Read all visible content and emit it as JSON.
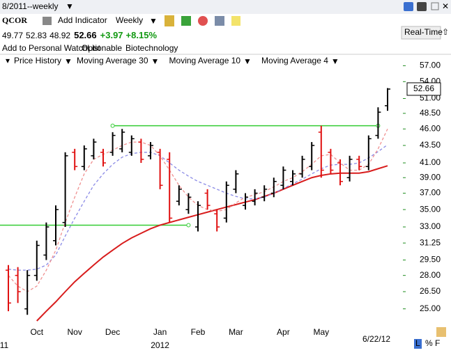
{
  "ui": {
    "window_title": "8/2011--weekly",
    "symbol": "QCOR",
    "add_indicator": "Add Indicator",
    "period": "Weekly",
    "change": {
      "value": 3.97,
      "label": "+3.97"
    },
    "change_pct": {
      "value": 8.15,
      "label": "+8.15%"
    },
    "watchlist": "Add to Personal WatchList",
    "optionable": "Optionable",
    "industry": "Biotechnology",
    "real_time": "Real-Time",
    "last_date": "6/22/12",
    "scale_buttons": [
      "L",
      "%",
      "F"
    ]
  },
  "chart_data": {
    "type": "ohlc",
    "price_name": "Price History",
    "categories": [
      null,
      null,
      null,
      "Oct",
      null,
      null,
      null,
      "Nov",
      null,
      null,
      null,
      "Dec",
      null,
      null,
      null,
      null,
      "Jan",
      null,
      null,
      null,
      "Feb",
      null,
      null,
      null,
      "Mar",
      null,
      null,
      null,
      null,
      "Apr",
      null,
      null,
      null,
      "May",
      null,
      null,
      null,
      null,
      null,
      null,
      null
    ],
    "categories2": [
      "11",
      null,
      null,
      null,
      null,
      null,
      null,
      null,
      null,
      null,
      null,
      null,
      null,
      null,
      null,
      null,
      "2012",
      null,
      null,
      null,
      null,
      null,
      null,
      null,
      null,
      null,
      null,
      null,
      null,
      null,
      null,
      null,
      null,
      null,
      null,
      null,
      null,
      null,
      null,
      null,
      null
    ],
    "open": [
      28.5,
      28.0,
      25.0,
      28.0,
      30.0,
      31.5,
      33.5,
      42.5,
      40.5,
      42.0,
      42.5,
      42.5,
      43.0,
      42.5,
      44.0,
      42.0,
      42.5,
      41.5,
      36.0,
      35.0,
      33.0,
      37.0,
      34.5,
      34.0,
      37.5,
      35.5,
      36.0,
      36.5,
      37.0,
      38.0,
      38.5,
      39.5,
      40.5,
      45.5,
      42.5,
      41.0,
      39.0,
      41.5,
      40.5,
      45.0,
      49.77
    ],
    "high": [
      29.0,
      28.8,
      28.5,
      31.5,
      33.5,
      35.5,
      42.5,
      43.0,
      43.5,
      44.5,
      43.0,
      45.5,
      46.0,
      45.0,
      44.5,
      44.0,
      43.0,
      42.5,
      38.0,
      37.0,
      36.0,
      37.5,
      35.0,
      38.5,
      40.0,
      37.0,
      37.5,
      38.0,
      39.0,
      40.5,
      40.0,
      42.0,
      44.0,
      46.5,
      43.0,
      41.5,
      42.0,
      42.0,
      45.0,
      49.5,
      52.83
    ],
    "low": [
      24.8,
      25.5,
      24.5,
      27.5,
      29.5,
      31.0,
      33.0,
      40.0,
      40.0,
      41.5,
      40.5,
      42.0,
      42.5,
      42.0,
      41.0,
      41.5,
      37.5,
      33.5,
      35.5,
      34.5,
      32.5,
      35.0,
      32.5,
      33.5,
      37.0,
      35.0,
      35.5,
      36.0,
      36.5,
      37.5,
      38.0,
      39.0,
      40.0,
      39.0,
      39.5,
      38.0,
      38.5,
      40.0,
      40.0,
      44.5,
      48.92
    ],
    "close": [
      25.5,
      26.5,
      28.0,
      31.0,
      33.0,
      35.0,
      42.0,
      40.5,
      43.0,
      44.0,
      41.0,
      45.0,
      45.5,
      44.5,
      41.5,
      43.5,
      38.0,
      34.0,
      37.5,
      36.5,
      35.5,
      35.5,
      33.0,
      38.0,
      39.5,
      36.5,
      37.0,
      37.5,
      38.5,
      40.0,
      39.5,
      41.5,
      43.5,
      40.0,
      40.0,
      38.5,
      41.5,
      40.5,
      44.5,
      48.69,
      52.66
    ],
    "up_color": "#000000",
    "down_color": "#e01010",
    "price_color": "#1a7a1a",
    "series": [
      {
        "name": "Moving Average 30",
        "color": "#d81c1c",
        "values": [
          null,
          null,
          null,
          24.0,
          24.8,
          25.6,
          26.5,
          27.4,
          28.2,
          29.0,
          29.8,
          30.5,
          31.2,
          31.8,
          32.3,
          32.8,
          33.2,
          33.5,
          33.8,
          34.1,
          34.4,
          34.7,
          35.0,
          35.3,
          35.6,
          35.9,
          36.2,
          36.6,
          37.0,
          37.5,
          38.0,
          38.5,
          39.0,
          39.3,
          39.5,
          39.6,
          39.6,
          39.6,
          39.8,
          40.2,
          40.6
        ]
      },
      {
        "name": "Moving Average 10",
        "color": "#8a8ae6",
        "values": [
          28.6,
          28.5,
          28.5,
          28.6,
          29.0,
          30.0,
          32.0,
          34.0,
          36.0,
          38.0,
          39.5,
          40.8,
          41.8,
          42.3,
          42.5,
          42.5,
          42.0,
          41.0,
          40.0,
          39.2,
          38.5,
          38.0,
          37.5,
          37.0,
          36.6,
          36.3,
          36.3,
          36.5,
          37.0,
          37.6,
          38.2,
          38.8,
          39.5,
          40.2,
          40.7,
          40.8,
          40.8,
          41.0,
          41.7,
          42.6,
          43.6
        ]
      },
      {
        "name": "Moving Average 4",
        "color": "#f09090",
        "values": [
          28.0,
          27.0,
          26.5,
          27.0,
          28.5,
          30.5,
          33.5,
          36.5,
          39.5,
          41.5,
          42.2,
          42.8,
          43.5,
          44.0,
          44.0,
          43.5,
          42.0,
          40.0,
          38.0,
          36.5,
          35.5,
          35.0,
          34.8,
          35.0,
          35.8,
          36.5,
          36.8,
          37.2,
          37.8,
          38.5,
          39.0,
          39.8,
          40.8,
          42.0,
          42.2,
          41.0,
          40.0,
          40.0,
          40.8,
          43.0,
          46.0
        ]
      }
    ],
    "trend_lines": [
      {
        "x": [
          11,
          39
        ],
        "value": 46.5,
        "color": "#33cc33"
      },
      {
        "x": [
          0,
          19
        ],
        "value": 33.2,
        "color": "#33cc33"
      }
    ],
    "log_scale": true,
    "ylim": [
      24,
      58
    ],
    "tick_color": "#1e8c1e",
    "yticks": [
      {
        "value": 57,
        "label": "57.00"
      },
      {
        "value": 54,
        "label": "54.00"
      },
      {
        "value": 51,
        "label": "51.00"
      },
      {
        "value": 48.5,
        "label": "48.50"
      },
      {
        "value": 46,
        "label": "46.00"
      },
      {
        "value": 43.5,
        "label": "43.50"
      },
      {
        "value": 41,
        "label": "41.00"
      },
      {
        "value": 39,
        "label": "39.00"
      },
      {
        "value": 37,
        "label": "37.00"
      },
      {
        "value": 35,
        "label": "35.00"
      },
      {
        "value": 33,
        "label": "33.00"
      },
      31.25,
      {
        "value": 29.5,
        "label": "29.50"
      },
      {
        "value": 28,
        "label": "28.00"
      },
      {
        "value": 26.5,
        "label": "26.50"
      },
      {
        "value": 25,
        "label": "25.00"
      }
    ]
  }
}
